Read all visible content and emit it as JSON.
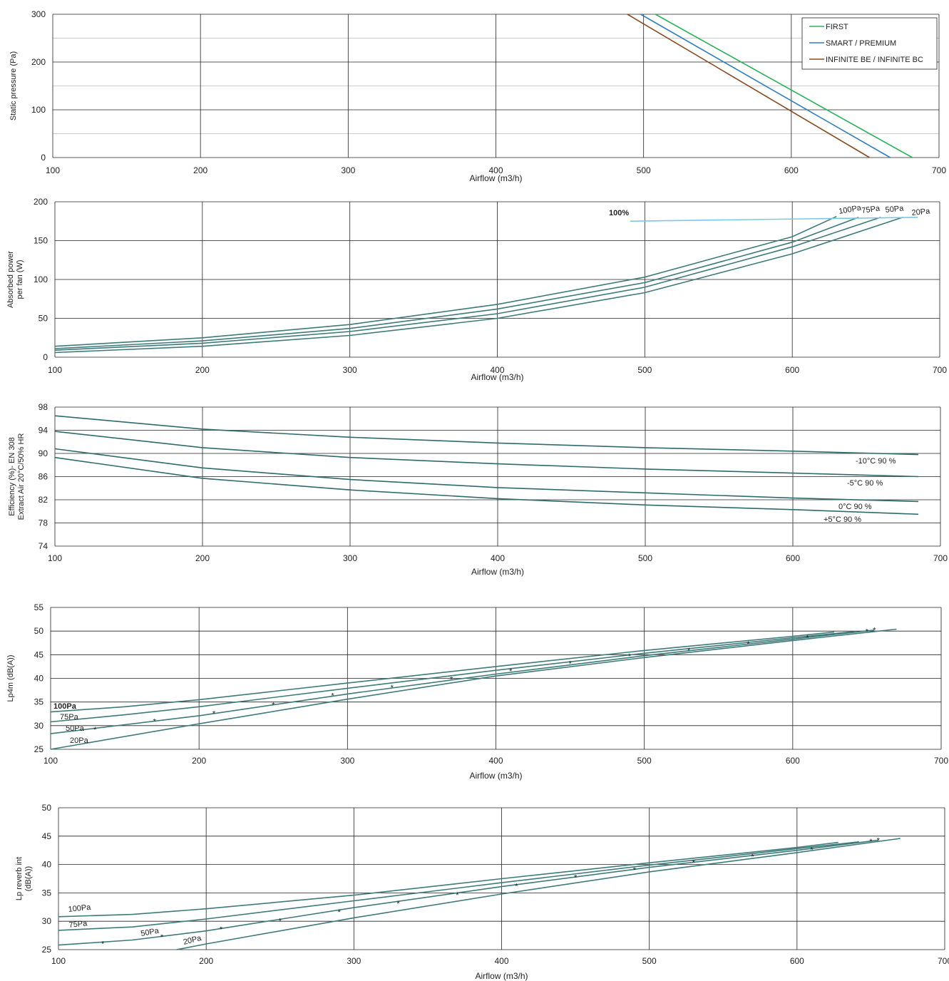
{
  "chart_data": [
    {
      "type": "line",
      "xlabel": "Airflow (m3/h)",
      "ylabel": "Static pressure (Pa)",
      "xlim": [
        100,
        700
      ],
      "ylim": [
        0,
        300
      ],
      "xticks": [
        "100",
        "200",
        "300",
        "400",
        "500",
        "600",
        "700"
      ],
      "yticks": [
        "0",
        "100",
        "200",
        "300"
      ],
      "legend_position": "top-right",
      "series": [
        {
          "name": "FIRST",
          "color": "#2bb35a",
          "x": [
            508,
            682
          ],
          "y": [
            300,
            0
          ]
        },
        {
          "name": "SMART / PREMIUM",
          "color": "#2f7fc1",
          "x": [
            498,
            667
          ],
          "y": [
            300,
            0
          ]
        },
        {
          "name": "INFINITE BE / INFINITE BC",
          "color": "#8b4a1e",
          "x": [
            489,
            653
          ],
          "y": [
            300,
            0
          ]
        }
      ]
    },
    {
      "type": "line",
      "xlabel": "Airflow (m3/h)",
      "ylabel": [
        "Absorbed power",
        "per fan (W)"
      ],
      "xlim": [
        100,
        700
      ],
      "ylim": [
        0,
        200
      ],
      "xticks": [
        "100",
        "200",
        "300",
        "400",
        "500",
        "600",
        "700"
      ],
      "yticks": [
        "0",
        "50",
        "100",
        "150",
        "200"
      ],
      "annotation": "100%",
      "series": [
        {
          "name": "100Pa",
          "color": "#3f7a7a",
          "x": [
            100,
            200,
            300,
            400,
            500,
            600,
            630
          ],
          "y": [
            14,
            25,
            42,
            68,
            103,
            155,
            181
          ]
        },
        {
          "name": "75Pa",
          "color": "#3f7a7a",
          "x": [
            100,
            200,
            300,
            400,
            500,
            600,
            645
          ],
          "y": [
            11,
            21,
            37,
            62,
            96,
            148,
            180
          ]
        },
        {
          "name": "50Pa",
          "color": "#3f7a7a",
          "x": [
            100,
            200,
            300,
            400,
            500,
            600,
            660
          ],
          "y": [
            9,
            18,
            33,
            56,
            90,
            142,
            180
          ]
        },
        {
          "name": "20Pa",
          "color": "#3f7a7a",
          "x": [
            100,
            200,
            300,
            400,
            500,
            600,
            675
          ],
          "y": [
            6,
            14,
            28,
            50,
            83,
            133,
            180
          ]
        },
        {
          "name": "100%",
          "color": "#7dc8e8",
          "x": [
            490,
            685
          ],
          "y": [
            175,
            180
          ]
        }
      ]
    },
    {
      "type": "line",
      "xlabel": "Airflow (m3/h)",
      "ylabel": [
        "Efficiency (%)- EN 308",
        "Extract Air 20°C/50% HR"
      ],
      "xlim": [
        100,
        700
      ],
      "ylim": [
        74,
        98
      ],
      "xticks": [
        "100",
        "200",
        "300",
        "400",
        "500",
        "600",
        "700"
      ],
      "yticks": [
        "74",
        "78",
        "82",
        "86",
        "90",
        "94",
        "98"
      ],
      "series": [
        {
          "name": "-10°C 90 %",
          "color": "#2f6b6b",
          "x": [
            100,
            200,
            300,
            400,
            500,
            600,
            685
          ],
          "y": [
            96.5,
            94.2,
            92.8,
            91.8,
            91.0,
            90.4,
            89.8
          ]
        },
        {
          "name": "-5°C 90 %",
          "color": "#2f6b6b",
          "x": [
            100,
            200,
            300,
            400,
            500,
            600,
            685
          ],
          "y": [
            93.8,
            91.0,
            89.3,
            88.2,
            87.3,
            86.6,
            86.0
          ]
        },
        {
          "name": "0°C 90 %",
          "color": "#2f6b6b",
          "x": [
            100,
            200,
            300,
            400,
            500,
            600,
            685
          ],
          "y": [
            90.8,
            87.5,
            85.5,
            84.1,
            83.2,
            82.3,
            81.7
          ]
        },
        {
          "name": "+5°C 90 %",
          "color": "#2f6b6b",
          "x": [
            100,
            200,
            300,
            400,
            500,
            600,
            685
          ],
          "y": [
            89.3,
            85.7,
            83.7,
            82.2,
            81.1,
            80.3,
            79.5
          ]
        }
      ]
    },
    {
      "type": "line",
      "xlabel": "Airflow (m3/h)",
      "ylabel": "Lp4m  (dB(A))",
      "xlim": [
        100,
        700
      ],
      "ylim": [
        25,
        55
      ],
      "xticks": [
        "100",
        "200",
        "300",
        "400",
        "500",
        "600",
        "700"
      ],
      "yticks": [
        "25",
        "30",
        "35",
        "40",
        "45",
        "50",
        "55"
      ],
      "series": [
        {
          "name": "100Pa",
          "color": "#3f7a7a",
          "x": [
            100,
            150,
            200,
            300,
            400,
            500,
            600,
            628
          ],
          "y": [
            32.9,
            34.0,
            35.5,
            39.0,
            42.5,
            45.9,
            48.9,
            49.8
          ]
        },
        {
          "name": "75Pa",
          "color": "#3f7a7a",
          "x": [
            100,
            150,
            200,
            300,
            400,
            500,
            600,
            642
          ],
          "y": [
            30.8,
            32.3,
            34.0,
            37.9,
            41.7,
            45.3,
            48.6,
            49.9
          ]
        },
        {
          "name": "50Pa",
          "color": "#3f7a7a",
          "x": [
            100,
            150,
            200,
            300,
            400,
            500,
            600,
            655
          ],
          "y": [
            28.3,
            30.2,
            32.1,
            36.7,
            40.9,
            44.8,
            48.3,
            50.2
          ]
        },
        {
          "name": "20Pa",
          "color": "#3f7a7a",
          "x": [
            100,
            200,
            300,
            400,
            500,
            600,
            670
          ],
          "y": [
            25.0,
            30.4,
            35.6,
            40.5,
            44.4,
            48.0,
            50.4
          ]
        }
      ],
      "markers": {
        "x": [
          130,
          170,
          210,
          250,
          290,
          330,
          370,
          410,
          450,
          490,
          530,
          570,
          610,
          650,
          655
        ],
        "y": [
          29.4,
          31.1,
          32.8,
          34.6,
          36.5,
          38.3,
          40.0,
          41.7,
          43.3,
          44.9,
          46.1,
          47.5,
          48.8,
          50.1,
          50.4
        ]
      }
    },
    {
      "type": "line",
      "xlabel": "Airflow (m3/h)",
      "ylabel": [
        "Lp reverb int",
        "(dB(A))"
      ],
      "xlim": [
        100,
        700
      ],
      "ylim": [
        25,
        50
      ],
      "xticks": [
        "100",
        "200",
        "300",
        "400",
        "500",
        "600",
        "700"
      ],
      "yticks": [
        "25",
        "30",
        "35",
        "40",
        "45",
        "50"
      ],
      "series": [
        {
          "name": "100Pa",
          "color": "#3f7a7a",
          "x": [
            100,
            150,
            200,
            300,
            400,
            500,
            600,
            628
          ],
          "y": [
            30.8,
            31.2,
            32.2,
            34.6,
            37.5,
            40.3,
            43.0,
            43.9
          ]
        },
        {
          "name": "75Pa",
          "color": "#3f7a7a",
          "x": [
            100,
            150,
            200,
            300,
            400,
            500,
            600,
            642
          ],
          "y": [
            28.4,
            29.0,
            30.4,
            33.6,
            36.8,
            39.9,
            42.8,
            44.0
          ]
        },
        {
          "name": "50Pa",
          "color": "#3f7a7a",
          "x": [
            100,
            150,
            200,
            300,
            400,
            500,
            600,
            655
          ],
          "y": [
            25.8,
            26.7,
            28.3,
            32.4,
            36.1,
            39.5,
            42.5,
            44.3
          ]
        },
        {
          "name": "20Pa",
          "color": "#3f7a7a",
          "x": [
            180,
            200,
            300,
            400,
            500,
            600,
            670
          ],
          "y": [
            25.0,
            26.0,
            30.6,
            34.8,
            38.7,
            42.1,
            44.6
          ]
        }
      ],
      "markers": {
        "x": [
          130,
          170,
          210,
          250,
          290,
          330,
          370,
          410,
          450,
          490,
          530,
          570,
          610,
          650,
          655
        ],
        "y": [
          26.2,
          27.4,
          28.8,
          30.2,
          31.8,
          33.3,
          34.8,
          36.4,
          37.9,
          39.2,
          40.5,
          41.6,
          42.8,
          44.2,
          44.4
        ]
      }
    }
  ]
}
